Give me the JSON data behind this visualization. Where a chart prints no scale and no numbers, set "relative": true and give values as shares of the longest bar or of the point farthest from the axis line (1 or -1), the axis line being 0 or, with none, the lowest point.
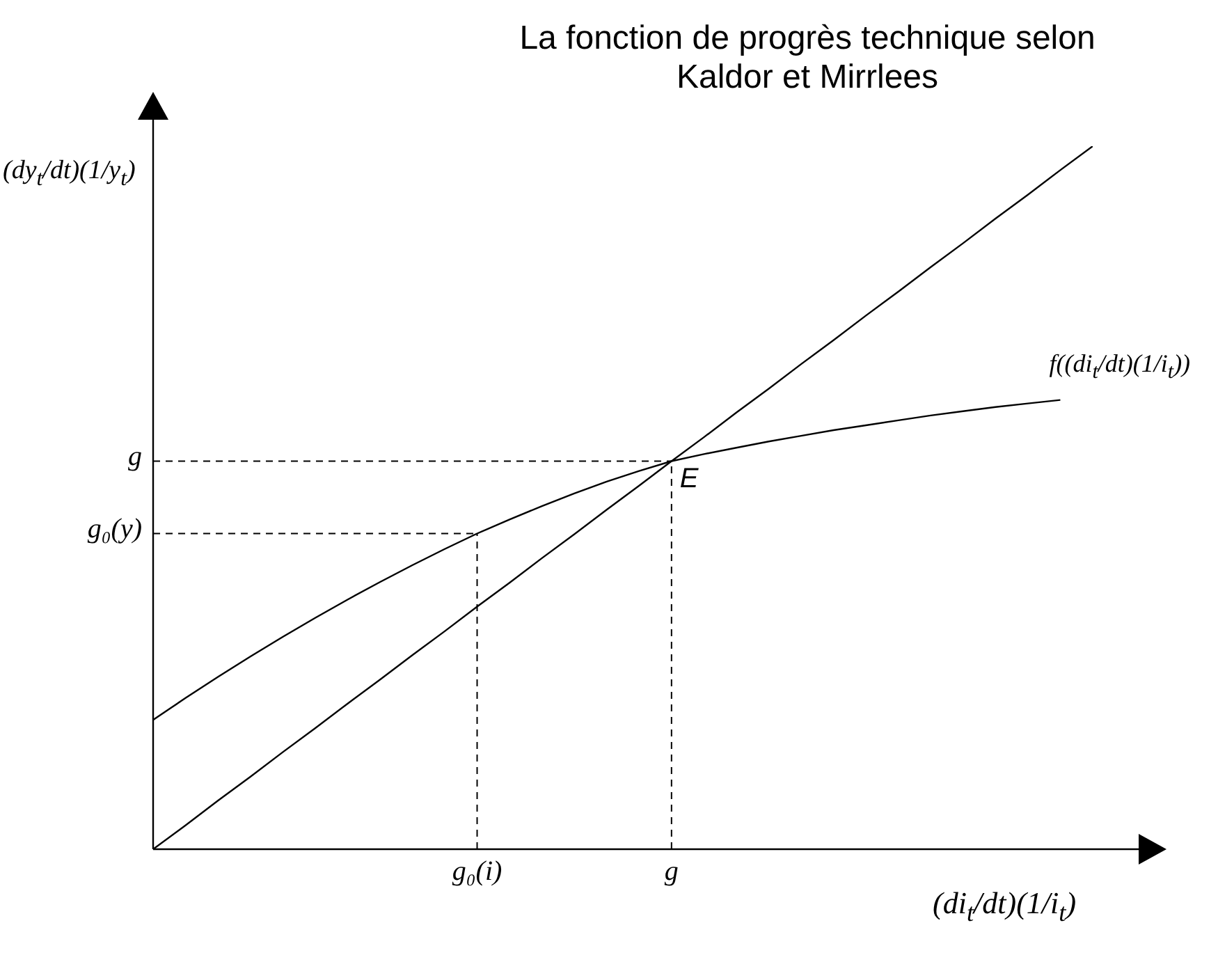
{
  "chart_data": {
    "type": "line",
    "relative": true,
    "title": "La fonction de progrès technique selon Kaldor et Mirrlees",
    "xlabel": "(di$_{t}$/dt)(1/i$_{t}$)",
    "ylabel": "(dy$_{t}$/dt)(1/y$_{t}$)",
    "categories": [
      null,
      null,
      null,
      null,
      null,
      null,
      null,
      null,
      null,
      null,
      "g₀(i)",
      null,
      null,
      null,
      null,
      null,
      "g",
      null,
      null,
      null,
      null,
      null,
      null,
      null,
      null,
      null,
      null,
      null,
      null,
      null
    ],
    "series": [
      {
        "name": "f((di$_{t}$/dt)(1/i$_{t}$))",
        "color": "#000000",
        "values": [
          0.184,
          0.215,
          0.245,
          0.274,
          0.302,
          0.329,
          0.355,
          0.38,
          0.404,
          0.427,
          0.449,
          0.469,
          0.488,
          0.506,
          0.523,
          0.538,
          0.552,
          0.562,
          0.571,
          0.58,
          0.588,
          0.596,
          0.603,
          0.61,
          0.617,
          0.623,
          0.629,
          0.634,
          0.639,
          null
        ]
      },
      {
        "color": "#000000",
        "values": [
          0,
          0.034,
          0.069,
          0.103,
          0.138,
          0.172,
          0.207,
          0.241,
          0.276,
          0.31,
          0.345,
          0.379,
          0.414,
          0.448,
          0.483,
          0.517,
          0.552,
          0.586,
          0.621,
          0.655,
          0.69,
          0.724,
          0.759,
          0.793,
          0.828,
          0.862,
          0.897,
          0.931,
          0.966,
          1
        ]
      }
    ],
    "ref_lines": [
      {
        "axis": "y",
        "value": 0.552,
        "label": "g",
        "line_style": "dashed"
      },
      {
        "axis": "y",
        "value": 0.449,
        "label": "g₀(y)",
        "line_style": "dashed"
      },
      {
        "axis": "x",
        "value": "g₀(i)",
        "line_style": "dashed"
      },
      {
        "axis": "x",
        "value": "g",
        "line_style": "dashed"
      }
    ],
    "annotations": [
      {
        "text": "E",
        "x": "g",
        "y": 0.552
      }
    ]
  }
}
